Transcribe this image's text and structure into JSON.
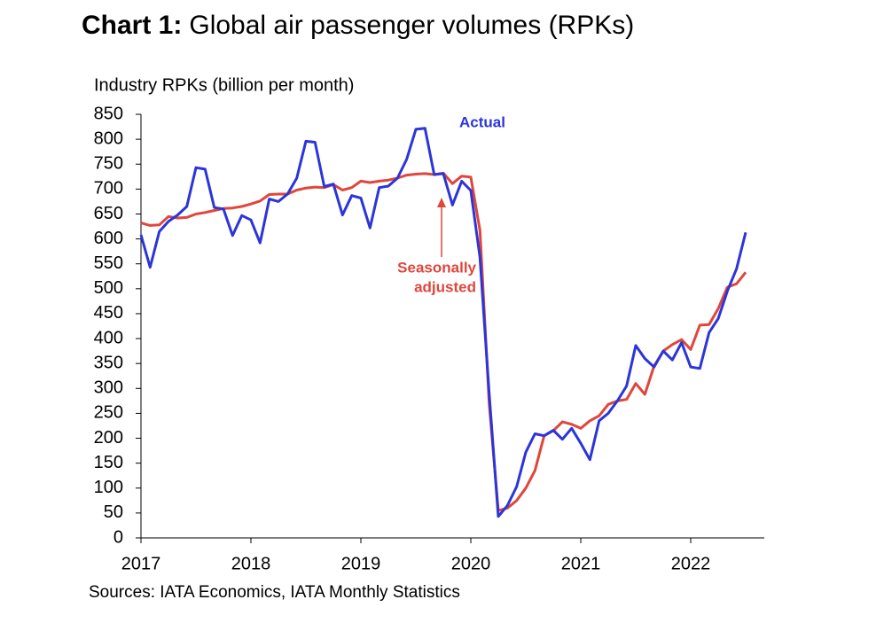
{
  "chart_data": {
    "type": "line",
    "title": [
      "Chart 1:",
      "Global air passenger volumes (RPKs)"
    ],
    "y_label": "Industry RPKs (billion per month)",
    "source": "Sources: IATA Economics, IATA Monthly Statistics",
    "annotations": [
      "Actual",
      "Seasonally",
      "adjusted"
    ],
    "categories": [
      "2017",
      null,
      null,
      null,
      null,
      null,
      null,
      null,
      null,
      null,
      null,
      null,
      "2018",
      null,
      null,
      null,
      null,
      null,
      null,
      null,
      null,
      null,
      null,
      null,
      "2019",
      null,
      null,
      null,
      null,
      null,
      null,
      null,
      null,
      null,
      null,
      null,
      "2020",
      null,
      null,
      null,
      null,
      null,
      null,
      null,
      null,
      null,
      null,
      null,
      "2021",
      null,
      null,
      null,
      null,
      null,
      null,
      null,
      null,
      null,
      null,
      null,
      "2022",
      null,
      null,
      null,
      null,
      null,
      null
    ],
    "series": [
      {
        "name": "Actual",
        "color": "#2b35d8",
        "values": [
          608,
          543,
          615,
          635,
          648,
          665,
          743,
          740,
          663,
          660,
          607,
          647,
          638,
          592,
          680,
          675,
          690,
          722,
          796,
          794,
          705,
          710,
          648,
          687,
          682,
          622,
          703,
          706,
          722,
          760,
          820,
          822,
          729,
          731,
          668,
          716,
          697,
          563,
          290,
          43,
          65,
          103,
          172,
          209,
          205,
          216,
          198,
          220,
          190,
          157,
          235,
          250,
          275,
          305,
          386,
          360,
          343,
          375,
          357,
          392,
          343,
          340,
          412,
          440,
          495,
          540,
          613
        ]
      },
      {
        "name": "Seasonally adjusted",
        "color": "#e0463c",
        "values": [
          632,
          627,
          628,
          645,
          642,
          643,
          650,
          653,
          657,
          661,
          662,
          665,
          670,
          676,
          689,
          690,
          690,
          698,
          702,
          704,
          703,
          709,
          698,
          703,
          716,
          713,
          716,
          718,
          722,
          728,
          730,
          731,
          729,
          732,
          711,
          726,
          724,
          617,
          270,
          55,
          60,
          75,
          100,
          135,
          205,
          215,
          233,
          228,
          220,
          235,
          245,
          268,
          275,
          278,
          310,
          288,
          345,
          375,
          388,
          398,
          378,
          427,
          428,
          460,
          503,
          510,
          533
        ]
      }
    ],
    "ylim": [
      0,
      850
    ],
    "yticks": [
      0,
      50,
      100,
      150,
      200,
      250,
      300,
      350,
      400,
      450,
      500,
      550,
      600,
      650,
      700,
      750,
      800,
      850
    ]
  }
}
